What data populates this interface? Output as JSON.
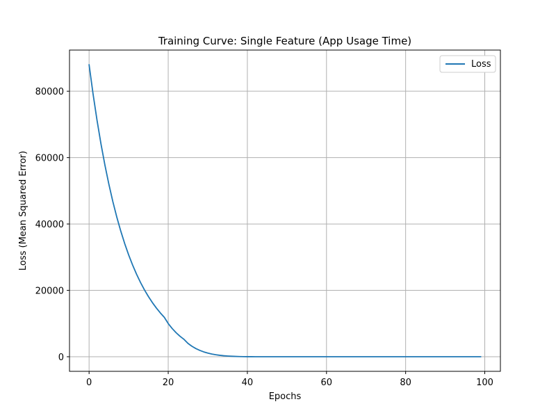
{
  "chart_data": {
    "type": "line",
    "title": "Training Curve: Single Feature (App Usage Time)",
    "xlabel": "Epochs",
    "ylabel": "Loss (Mean Squared Error)",
    "xlim": [
      -4.95,
      103.95
    ],
    "ylim": [
      -4400,
      92400
    ],
    "xticks": [
      0,
      20,
      40,
      60,
      80,
      100
    ],
    "xtick_labels": [
      "0",
      "20",
      "40",
      "60",
      "80",
      "100"
    ],
    "yticks": [
      0,
      20000,
      40000,
      60000,
      80000
    ],
    "ytick_labels": [
      "0",
      "20000",
      "40000",
      "60000",
      "80000"
    ],
    "grid": true,
    "legend_placement": "top-right",
    "series": [
      {
        "name": "Loss",
        "color": "#1f77b4",
        "x": [
          0,
          1,
          2,
          3,
          4,
          5,
          6,
          7,
          8,
          9,
          10,
          11,
          12,
          13,
          14,
          15,
          16,
          17,
          18,
          19,
          20,
          21,
          22,
          23,
          24,
          25,
          26,
          27,
          28,
          29,
          30,
          31,
          32,
          33,
          34,
          35,
          36,
          37,
          38,
          39,
          40,
          41,
          42,
          43,
          44,
          45,
          46,
          47,
          48,
          49,
          50,
          51,
          52,
          53,
          54,
          55,
          56,
          57,
          58,
          59,
          60,
          61,
          62,
          63,
          64,
          65,
          66,
          67,
          68,
          69,
          70,
          71,
          72,
          73,
          74,
          75,
          76,
          77,
          78,
          79,
          80,
          81,
          82,
          83,
          84,
          85,
          86,
          87,
          88,
          89,
          90,
          91,
          92,
          93,
          94,
          95,
          96,
          97,
          98,
          99
        ],
        "values": [
          88000,
          79200,
          71280,
          64152,
          57737,
          51963,
          46767,
          42090,
          37881,
          34093,
          30684,
          27616,
          24854,
          22369,
          20132,
          18119,
          16307,
          14676,
          13208,
          11887,
          10000,
          8500,
          7225,
          6141,
          5220,
          4000,
          3150,
          2450,
          1900,
          1450,
          1100,
          820,
          600,
          430,
          300,
          210,
          140,
          90,
          55,
          30,
          15,
          8,
          4,
          2,
          1,
          0,
          0,
          0,
          0,
          0,
          0,
          0,
          0,
          0,
          0,
          0,
          0,
          0,
          0,
          0,
          0,
          0,
          0,
          0,
          0,
          0,
          0,
          0,
          0,
          0,
          0,
          0,
          0,
          0,
          0,
          0,
          0,
          0,
          0,
          0,
          0,
          0,
          0,
          0,
          0,
          0,
          0,
          0,
          0,
          0,
          0,
          0,
          0,
          0,
          0,
          0,
          0,
          0,
          0,
          0
        ]
      }
    ]
  }
}
